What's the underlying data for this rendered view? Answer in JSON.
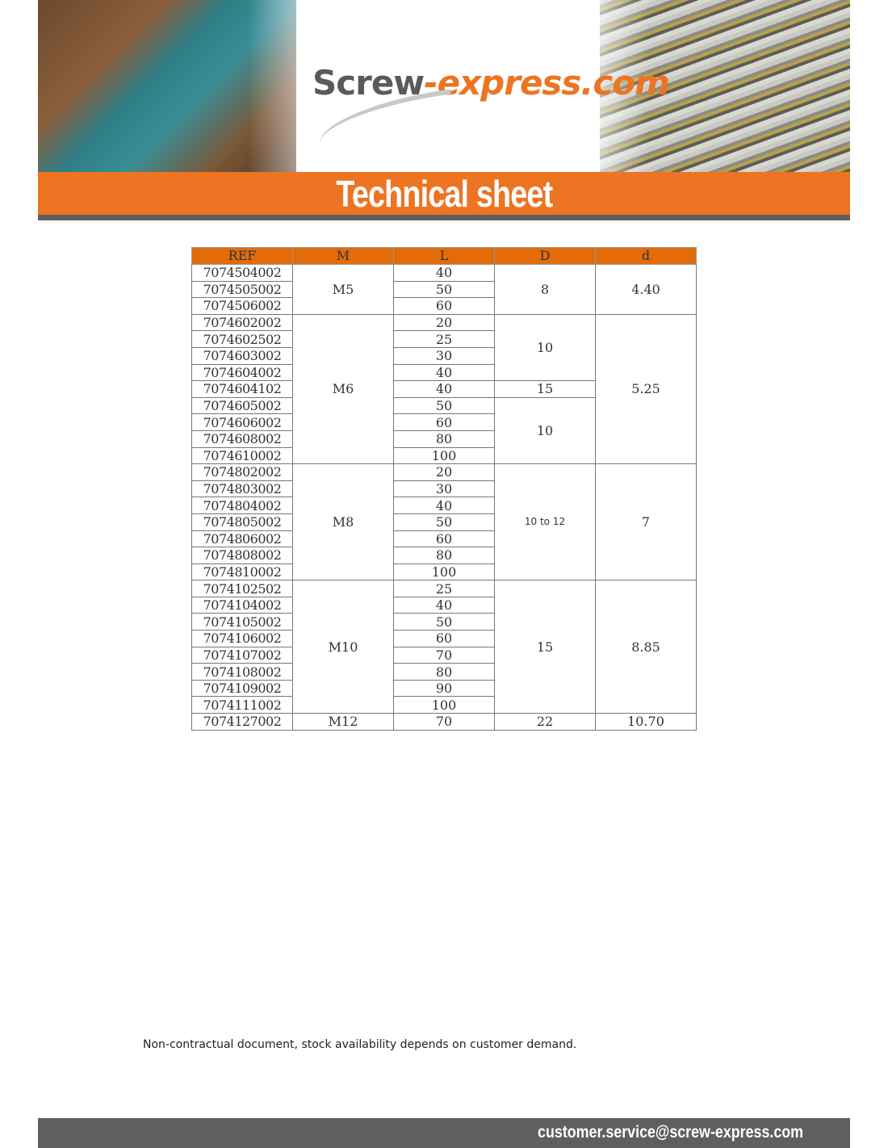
{
  "header": {
    "logo_main": "Screw",
    "logo_accent": "-express.com",
    "title": "Technical sheet"
  },
  "table": {
    "columns": [
      "REF",
      "M",
      "L",
      "D",
      "d"
    ],
    "rows": [
      [
        {
          "t": "7074504002"
        },
        {
          "t": "M5",
          "span": 3
        },
        {
          "t": "40"
        },
        {
          "t": "8",
          "span": 3
        },
        {
          "t": "4.40",
          "span": 3
        }
      ],
      [
        {
          "t": "7074505002"
        },
        {
          "t": "50"
        }
      ],
      [
        {
          "t": "7074506002"
        },
        {
          "t": "60"
        }
      ],
      [
        {
          "t": "7074602002"
        },
        {
          "t": "M6",
          "span": 9
        },
        {
          "t": "20"
        },
        {
          "t": "10",
          "span": 4
        },
        {
          "t": "5.25",
          "span": 9
        }
      ],
      [
        {
          "t": "7074602502"
        },
        {
          "t": "25"
        }
      ],
      [
        {
          "t": "7074603002"
        },
        {
          "t": "30"
        }
      ],
      [
        {
          "t": "7074604002"
        },
        {
          "t": "40"
        }
      ],
      [
        {
          "t": "7074604102"
        },
        {
          "t": "40"
        },
        {
          "t": "15"
        }
      ],
      [
        {
          "t": "7074605002"
        },
        {
          "t": "50"
        },
        {
          "t": "10",
          "span": 4
        }
      ],
      [
        {
          "t": "7074606002"
        },
        {
          "t": "60"
        }
      ],
      [
        {
          "t": "7074608002"
        },
        {
          "t": "80"
        }
      ],
      [
        {
          "t": "7074610002"
        },
        {
          "t": "100"
        }
      ],
      [
        {
          "t": "7074802002"
        },
        {
          "t": "M8",
          "span": 7
        },
        {
          "t": "20"
        },
        {
          "t": "10 to 12",
          "span": 7,
          "sans": true
        },
        {
          "t": "7",
          "span": 7
        }
      ],
      [
        {
          "t": "7074803002"
        },
        {
          "t": "30"
        }
      ],
      [
        {
          "t": "7074804002"
        },
        {
          "t": "40"
        }
      ],
      [
        {
          "t": "7074805002"
        },
        {
          "t": "50"
        }
      ],
      [
        {
          "t": "7074806002"
        },
        {
          "t": "60"
        }
      ],
      [
        {
          "t": "7074808002"
        },
        {
          "t": "80"
        }
      ],
      [
        {
          "t": "7074810002"
        },
        {
          "t": "100"
        }
      ],
      [
        {
          "t": "7074102502"
        },
        {
          "t": "M10",
          "span": 8
        },
        {
          "t": "25"
        },
        {
          "t": "15",
          "span": 8
        },
        {
          "t": "8.85",
          "span": 8
        }
      ],
      [
        {
          "t": "7074104002"
        },
        {
          "t": "40"
        }
      ],
      [
        {
          "t": "7074105002"
        },
        {
          "t": "50"
        }
      ],
      [
        {
          "t": "7074106002"
        },
        {
          "t": "60"
        }
      ],
      [
        {
          "t": "7074107002"
        },
        {
          "t": "70"
        }
      ],
      [
        {
          "t": "7074108002"
        },
        {
          "t": "80"
        }
      ],
      [
        {
          "t": "7074109002"
        },
        {
          "t": "90"
        }
      ],
      [
        {
          "t": "7074111002"
        },
        {
          "t": "100"
        }
      ],
      [
        {
          "t": "7074127002"
        },
        {
          "t": "M12"
        },
        {
          "t": "70"
        },
        {
          "t": "22"
        },
        {
          "t": "10.70"
        }
      ]
    ]
  },
  "note": "Non-contractual document, stock availability depends on customer demand.",
  "footer": {
    "email": "customer.service@screw-express.com"
  },
  "colors": {
    "accent": "#ec7423",
    "header_cell": "#e36c0a",
    "bar": "#5f5f5f"
  }
}
